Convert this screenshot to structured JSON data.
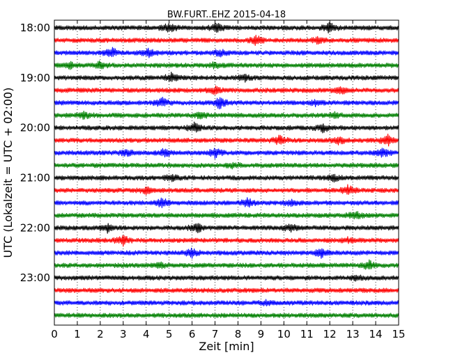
{
  "chart_data": {
    "type": "line",
    "title": "BW.FURT..EHZ 2015-04-18",
    "xlabel": "Zeit  [min]",
    "ylabel": "UTC (Lokalzeit = UTC + 02:00)",
    "xlim": [
      0,
      15
    ],
    "x_ticks": [
      0,
      1,
      2,
      3,
      4,
      5,
      6,
      7,
      8,
      9,
      10,
      11,
      12,
      13,
      14,
      15
    ],
    "x_tick_labels": [
      "0",
      "1",
      "2",
      "3",
      "4",
      "5",
      "6",
      "7",
      "8",
      "9",
      "10",
      "11",
      "12",
      "13",
      "14",
      "15"
    ],
    "grid": "vertical dotted",
    "y_ticks": [
      {
        "trace_index": 0,
        "label": "18:00"
      },
      {
        "trace_index": 4,
        "label": "19:00"
      },
      {
        "trace_index": 8,
        "label": "20:00"
      },
      {
        "trace_index": 12,
        "label": "21:00"
      },
      {
        "trace_index": 16,
        "label": "22:00"
      },
      {
        "trace_index": 20,
        "label": "23:00"
      }
    ],
    "traces": [
      {
        "start": "18:00",
        "color": "#000000",
        "events": [
          [
            5.0,
            0.9
          ],
          [
            7.1,
            0.7
          ],
          [
            12.0,
            1.0
          ]
        ]
      },
      {
        "start": "18:15",
        "color": "#ff0000",
        "events": [
          [
            8.8,
            0.9
          ],
          [
            11.5,
            0.5
          ]
        ]
      },
      {
        "start": "18:30",
        "color": "#0000ff",
        "events": [
          [
            2.5,
            0.9
          ],
          [
            4.1,
            0.7
          ],
          [
            7.2,
            0.6
          ]
        ]
      },
      {
        "start": "18:45",
        "color": "#008000",
        "events": [
          [
            0.7,
            0.5
          ],
          [
            2.0,
            0.6
          ],
          [
            7.0,
            0.5
          ]
        ]
      },
      {
        "start": "19:00",
        "color": "#000000",
        "events": [
          [
            5.1,
            0.8
          ],
          [
            8.3,
            0.5
          ]
        ]
      },
      {
        "start": "19:15",
        "color": "#ff0000",
        "events": [
          [
            7.0,
            0.6
          ],
          [
            12.5,
            0.6
          ]
        ]
      },
      {
        "start": "19:30",
        "color": "#0000ff",
        "events": [
          [
            4.7,
            0.8
          ],
          [
            7.2,
            1.0
          ],
          [
            11.4,
            0.4
          ]
        ]
      },
      {
        "start": "19:45",
        "color": "#008000",
        "events": [
          [
            1.3,
            0.5
          ],
          [
            6.4,
            0.5
          ],
          [
            12.2,
            0.4
          ]
        ]
      },
      {
        "start": "20:00",
        "color": "#000000",
        "events": [
          [
            6.1,
            0.8
          ],
          [
            11.7,
            0.7
          ]
        ]
      },
      {
        "start": "20:15",
        "color": "#ff0000",
        "events": [
          [
            9.8,
            0.8
          ],
          [
            12.4,
            0.6
          ],
          [
            14.5,
            1.0
          ]
        ]
      },
      {
        "start": "20:30",
        "color": "#0000ff",
        "events": [
          [
            3.2,
            0.6
          ],
          [
            4.8,
            0.7
          ],
          [
            7.0,
            0.8
          ],
          [
            14.3,
            0.7
          ]
        ]
      },
      {
        "start": "20:45",
        "color": "#008000",
        "events": [
          [
            7.8,
            0.4
          ]
        ]
      },
      {
        "start": "21:00",
        "color": "#000000",
        "events": [
          [
            5.1,
            0.6
          ],
          [
            12.2,
            0.5
          ]
        ]
      },
      {
        "start": "21:15",
        "color": "#ff0000",
        "events": [
          [
            4.0,
            0.5
          ],
          [
            12.8,
            0.9
          ]
        ]
      },
      {
        "start": "21:30",
        "color": "#0000ff",
        "events": [
          [
            4.7,
            0.9
          ],
          [
            8.4,
            0.8
          ],
          [
            10.3,
            0.4
          ]
        ]
      },
      {
        "start": "21:45",
        "color": "#008000",
        "events": [
          [
            13.1,
            0.7
          ]
        ]
      },
      {
        "start": "22:00",
        "color": "#000000",
        "events": [
          [
            2.3,
            0.7
          ],
          [
            6.2,
            0.8
          ],
          [
            10.3,
            0.6
          ]
        ]
      },
      {
        "start": "22:15",
        "color": "#ff0000",
        "events": [
          [
            3.0,
            0.8
          ],
          [
            12.8,
            0.4
          ]
        ]
      },
      {
        "start": "22:30",
        "color": "#0000ff",
        "events": [
          [
            6.0,
            0.7
          ],
          [
            11.6,
            0.8
          ]
        ]
      },
      {
        "start": "22:45",
        "color": "#008000",
        "events": [
          [
            4.6,
            0.4
          ],
          [
            13.7,
            0.8
          ]
        ]
      },
      {
        "start": "23:00",
        "color": "#000000",
        "events": [
          [
            13.2,
            0.4
          ]
        ]
      },
      {
        "start": "23:15",
        "color": "#ff0000",
        "events": []
      },
      {
        "start": "23:30",
        "color": "#0000ff",
        "events": [
          [
            9.2,
            0.3
          ]
        ]
      },
      {
        "start": "23:45",
        "color": "#008000",
        "events": []
      }
    ]
  }
}
